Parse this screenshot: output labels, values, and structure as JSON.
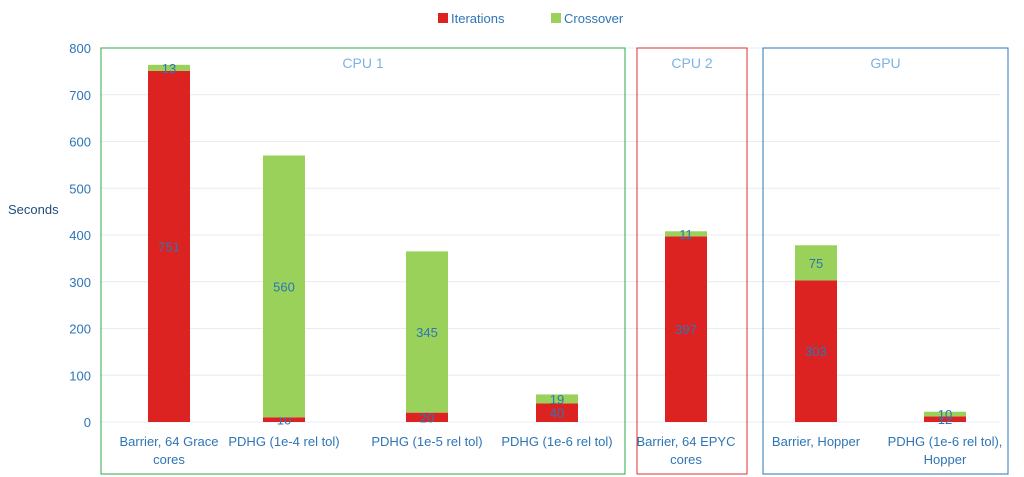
{
  "chart_data": {
    "type": "bar",
    "stacked": true,
    "categories": [
      [
        "Barrier, 64 Grace",
        "cores"
      ],
      [
        "PDHG (1e-4 rel tol)"
      ],
      [
        "PDHG (1e-5 rel tol)"
      ],
      [
        "PDHG (1e-6 rel tol)"
      ],
      [
        "Barrier, 64 EPYC",
        "cores"
      ],
      [
        "Barrier, Hopper"
      ],
      [
        "PDHG (1e-6 rel tol),",
        "Hopper"
      ]
    ],
    "series": [
      {
        "name": "Iterations",
        "color": "#dd2222",
        "values": [
          751,
          10,
          20,
          40,
          397,
          303,
          12
        ]
      },
      {
        "name": "Crossover",
        "color": "#99d15a",
        "values": [
          13,
          560,
          345,
          19,
          11,
          75,
          10
        ]
      }
    ],
    "ylabel": "Seconds",
    "ylim": [
      0,
      800
    ],
    "yticks": [
      0,
      100,
      200,
      300,
      400,
      500,
      600,
      700,
      800
    ],
    "grid": true,
    "legend": "top-center",
    "groups": [
      {
        "label": "CPU 1",
        "categories": [
          0,
          3
        ],
        "color": "#2ea84f"
      },
      {
        "label": "CPU 2",
        "categories": [
          4,
          4
        ],
        "color": "#e03030"
      },
      {
        "label": "GPU",
        "categories": [
          5,
          6
        ],
        "color": "#2e75b6"
      }
    ]
  }
}
